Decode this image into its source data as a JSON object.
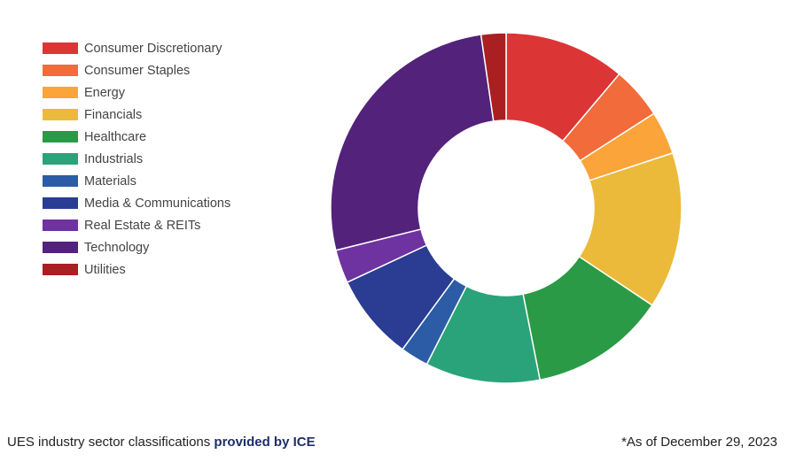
{
  "chart_data": {
    "type": "pie",
    "donut": true,
    "title": "",
    "legend_position": "top-left",
    "categories": [
      "Consumer Discretionary",
      "Consumer Staples",
      "Energy",
      "Financials",
      "Healthcare",
      "Industrials",
      "Materials",
      "Media & Communications",
      "Real Estate & REITs",
      "Technology",
      "Utilities"
    ],
    "values": [
      11.2,
      4.8,
      4.0,
      14.5,
      12.6,
      10.6,
      2.6,
      8.0,
      3.1,
      26.7,
      2.3
    ],
    "colors": [
      "#dc3535",
      "#f26b3a",
      "#fba43a",
      "#ecba3a",
      "#2a9a46",
      "#2aa37a",
      "#2c5ca6",
      "#2b3c93",
      "#6e33a0",
      "#53227a",
      "#a91f22"
    ]
  },
  "footer": {
    "source_prefix": "UES industry sector classifications ",
    "source_provider": "provided by ICE",
    "as_of": "*As of December 29, 2023"
  }
}
